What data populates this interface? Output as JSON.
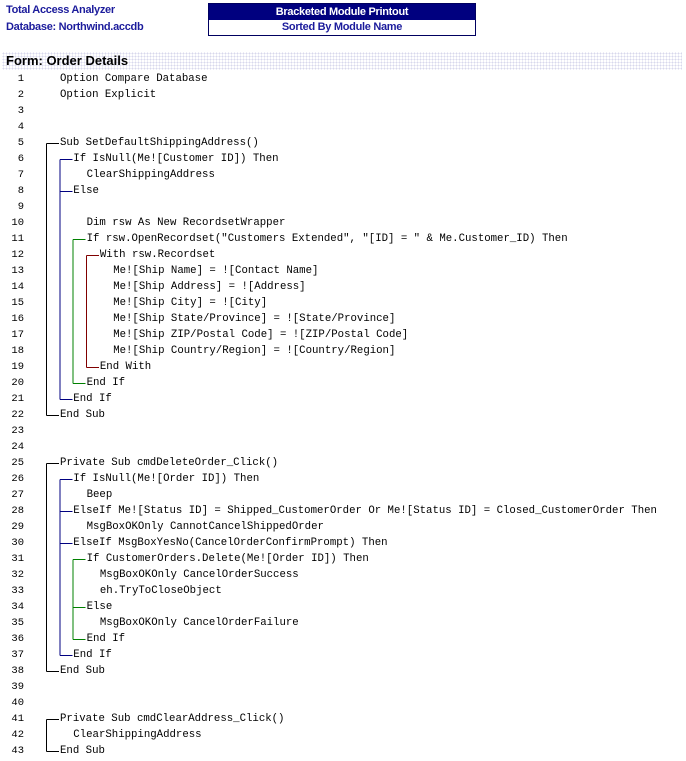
{
  "header": {
    "app": "Total Access Analyzer",
    "database": "Database: Northwind.accdb",
    "report_title": "Bracketed Module Printout",
    "report_subtitle": "Sorted By Module Name"
  },
  "section_title": "Form: Order Details",
  "bracket_colors": [
    "#000000",
    "#000080",
    "#008000",
    "#800000"
  ],
  "lines": [
    {
      "n": "1",
      "d": 0,
      "t": "Option Compare Database"
    },
    {
      "n": "2",
      "d": 0,
      "t": "Option Explicit"
    },
    {
      "n": "3",
      "d": 0,
      "t": ""
    },
    {
      "n": "4",
      "d": 0,
      "t": ""
    },
    {
      "n": "5",
      "d": 0,
      "t": "Sub SetDefaultShippingAddress()"
    },
    {
      "n": "6",
      "d": 1,
      "t": "If IsNull(Me![Customer ID]) Then"
    },
    {
      "n": "7",
      "d": 2,
      "t": "ClearShippingAddress"
    },
    {
      "n": "8",
      "d": 1,
      "t": "Else"
    },
    {
      "n": "9",
      "d": 0,
      "t": ""
    },
    {
      "n": "10",
      "d": 2,
      "t": "Dim rsw As New RecordsetWrapper"
    },
    {
      "n": "11",
      "d": 2,
      "t": "If rsw.OpenRecordset(\"Customers Extended\", \"[ID] = \" & Me.Customer_ID) Then"
    },
    {
      "n": "12",
      "d": 3,
      "t": "With rsw.Recordset"
    },
    {
      "n": "13",
      "d": 4,
      "t": "Me![Ship Name] = ![Contact Name]"
    },
    {
      "n": "14",
      "d": 4,
      "t": "Me![Ship Address] = ![Address]"
    },
    {
      "n": "15",
      "d": 4,
      "t": "Me![Ship City] = ![City]"
    },
    {
      "n": "16",
      "d": 4,
      "t": "Me![Ship State/Province] = ![State/Province]"
    },
    {
      "n": "17",
      "d": 4,
      "t": "Me![Ship ZIP/Postal Code] = ![ZIP/Postal Code]"
    },
    {
      "n": "18",
      "d": 4,
      "t": "Me![Ship Country/Region] = ![Country/Region]"
    },
    {
      "n": "19",
      "d": 3,
      "t": "End With"
    },
    {
      "n": "20",
      "d": 2,
      "t": "End If"
    },
    {
      "n": "21",
      "d": 1,
      "t": "End If"
    },
    {
      "n": "22",
      "d": 0,
      "t": "End Sub"
    },
    {
      "n": "23",
      "d": 0,
      "t": ""
    },
    {
      "n": "24",
      "d": 0,
      "t": ""
    },
    {
      "n": "25",
      "d": 0,
      "t": "Private Sub cmdDeleteOrder_Click()"
    },
    {
      "n": "26",
      "d": 1,
      "t": "If IsNull(Me![Order ID]) Then"
    },
    {
      "n": "27",
      "d": 2,
      "t": "Beep"
    },
    {
      "n": "28",
      "d": 1,
      "t": "ElseIf Me![Status ID] = Shipped_CustomerOrder Or Me![Status ID] = Closed_CustomerOrder Then"
    },
    {
      "n": "29",
      "d": 2,
      "t": "MsgBoxOKOnly CannotCancelShippedOrder"
    },
    {
      "n": "30",
      "d": 1,
      "t": "ElseIf MsgBoxYesNo(CancelOrderConfirmPrompt) Then"
    },
    {
      "n": "31",
      "d": 2,
      "t": "If CustomerOrders.Delete(Me![Order ID]) Then"
    },
    {
      "n": "32",
      "d": 3,
      "t": "MsgBoxOKOnly CancelOrderSuccess"
    },
    {
      "n": "33",
      "d": 3,
      "t": "eh.TryToCloseObject"
    },
    {
      "n": "34",
      "d": 2,
      "t": "Else"
    },
    {
      "n": "35",
      "d": 3,
      "t": "MsgBoxOKOnly CancelOrderFailure"
    },
    {
      "n": "36",
      "d": 2,
      "t": "End If"
    },
    {
      "n": "37",
      "d": 1,
      "t": "End If"
    },
    {
      "n": "38",
      "d": 0,
      "t": "End Sub"
    },
    {
      "n": "39",
      "d": 0,
      "t": ""
    },
    {
      "n": "40",
      "d": 0,
      "t": ""
    },
    {
      "n": "41",
      "d": 0,
      "t": "Private Sub cmdClearAddress_Click()"
    },
    {
      "n": "42",
      "d": 1,
      "t": "ClearShippingAddress"
    },
    {
      "n": "43",
      "d": 0,
      "t": "End Sub"
    }
  ],
  "brackets": [
    {
      "from": 5,
      "to": 22,
      "depth": 0,
      "mid": []
    },
    {
      "from": 6,
      "to": 21,
      "depth": 1,
      "mid": [
        8
      ]
    },
    {
      "from": 11,
      "to": 20,
      "depth": 2,
      "mid": []
    },
    {
      "from": 12,
      "to": 19,
      "depth": 3,
      "mid": []
    },
    {
      "from": 25,
      "to": 38,
      "depth": 0,
      "mid": []
    },
    {
      "from": 26,
      "to": 37,
      "depth": 1,
      "mid": [
        28,
        30
      ]
    },
    {
      "from": 31,
      "to": 36,
      "depth": 2,
      "mid": [
        34
      ]
    },
    {
      "from": 41,
      "to": 43,
      "depth": 0,
      "mid": []
    }
  ]
}
